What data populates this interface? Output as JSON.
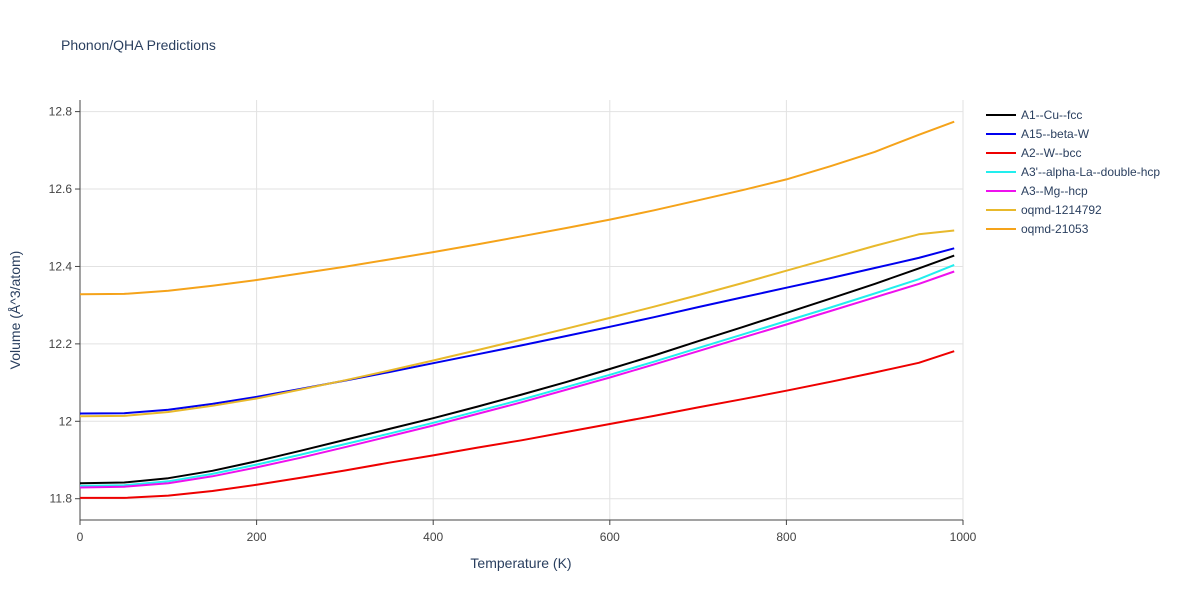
{
  "chart_data": {
    "type": "line",
    "title": "Phonon/QHA Predictions",
    "xlabel": "Temperature (K)",
    "ylabel": "Volume (Å^3/atom)",
    "xlim": [
      0,
      1000
    ],
    "ylim": [
      11.745,
      12.83
    ],
    "x_ticks": [
      0,
      200,
      400,
      600,
      800,
      1000
    ],
    "x_tick_labels": [
      "0",
      "200",
      "400",
      "600",
      "800",
      "1000"
    ],
    "y_ticks": [
      11.8,
      12.0,
      12.2,
      12.4,
      12.6,
      12.8
    ],
    "y_tick_labels": [
      "11.8",
      "12",
      "12.2",
      "12.4",
      "12.6",
      "12.8"
    ],
    "grid": true,
    "legend_position": "right",
    "series": [
      {
        "name": "A1--Cu--fcc",
        "color": "#000000",
        "x": [
          0,
          50,
          100,
          150,
          200,
          250,
          300,
          350,
          400,
          450,
          500,
          550,
          600,
          650,
          700,
          750,
          800,
          850,
          900,
          950,
          990
        ],
        "y": [
          11.84,
          11.842,
          11.853,
          11.872,
          11.897,
          11.924,
          11.952,
          11.98,
          12.008,
          12.038,
          12.069,
          12.101,
          12.135,
          12.17,
          12.207,
          12.243,
          12.28,
          12.317,
          12.355,
          12.395,
          12.428
        ]
      },
      {
        "name": "A15--beta-W",
        "color": "#0000ee",
        "x": [
          0,
          50,
          100,
          150,
          200,
          250,
          300,
          350,
          400,
          450,
          500,
          550,
          600,
          650,
          700,
          750,
          800,
          850,
          900,
          950,
          990
        ],
        "y": [
          12.02,
          12.021,
          12.03,
          12.045,
          12.063,
          12.084,
          12.105,
          12.127,
          12.15,
          12.173,
          12.196,
          12.22,
          12.244,
          12.269,
          12.295,
          12.32,
          12.345,
          12.37,
          12.396,
          12.422,
          12.447
        ]
      },
      {
        "name": "A2--W--bcc",
        "color": "#ee0000",
        "x": [
          0,
          50,
          100,
          150,
          200,
          250,
          300,
          350,
          400,
          450,
          500,
          550,
          600,
          650,
          700,
          750,
          800,
          850,
          900,
          950,
          990
        ],
        "y": [
          11.802,
          11.802,
          11.808,
          11.82,
          11.836,
          11.854,
          11.873,
          11.893,
          11.912,
          11.932,
          11.951,
          11.972,
          11.993,
          12.014,
          12.036,
          12.057,
          12.079,
          12.102,
          12.126,
          12.151,
          12.181
        ]
      },
      {
        "name": "A3'--alpha-La--double-hcp",
        "color": "#22eeee",
        "x": [
          0,
          50,
          100,
          150,
          200,
          250,
          300,
          350,
          400,
          450,
          500,
          550,
          600,
          650,
          700,
          750,
          800,
          850,
          900,
          950,
          990
        ],
        "y": [
          11.833,
          11.835,
          11.845,
          11.864,
          11.888,
          11.914,
          11.941,
          11.968,
          11.996,
          12.026,
          12.056,
          12.088,
          12.12,
          12.154,
          12.189,
          12.224,
          12.259,
          12.294,
          12.33,
          12.367,
          12.404
        ]
      },
      {
        "name": "A3--Mg--hcp",
        "color": "#ee11ee",
        "x": [
          0,
          50,
          100,
          150,
          200,
          250,
          300,
          350,
          400,
          450,
          500,
          550,
          600,
          650,
          700,
          750,
          800,
          850,
          900,
          950,
          990
        ],
        "y": [
          11.829,
          11.831,
          11.84,
          11.858,
          11.881,
          11.906,
          11.933,
          11.961,
          11.989,
          12.019,
          12.049,
          12.081,
          12.113,
          12.147,
          12.181,
          12.216,
          12.25,
          12.285,
          12.32,
          12.355,
          12.387
        ]
      },
      {
        "name": "oqmd-1214792",
        "color": "#e8b92c",
        "x": [
          0,
          50,
          100,
          150,
          200,
          250,
          300,
          350,
          400,
          450,
          500,
          550,
          600,
          650,
          700,
          750,
          800,
          850,
          900,
          950,
          990
        ],
        "y": [
          12.013,
          12.014,
          12.024,
          12.04,
          12.059,
          12.082,
          12.106,
          12.131,
          12.157,
          12.184,
          12.211,
          12.239,
          12.267,
          12.296,
          12.326,
          12.357,
          12.389,
          12.421,
          12.453,
          12.483,
          12.493
        ]
      },
      {
        "name": "oqmd-21053",
        "color": "#f5a31a",
        "x": [
          0,
          50,
          100,
          150,
          200,
          250,
          300,
          350,
          400,
          450,
          500,
          550,
          600,
          650,
          700,
          750,
          800,
          850,
          900,
          950,
          990
        ],
        "y": [
          12.328,
          12.329,
          12.337,
          12.35,
          12.365,
          12.382,
          12.399,
          12.418,
          12.437,
          12.457,
          12.478,
          12.499,
          12.521,
          12.545,
          12.571,
          12.597,
          12.625,
          12.659,
          12.696,
          12.74,
          12.774
        ]
      }
    ]
  }
}
